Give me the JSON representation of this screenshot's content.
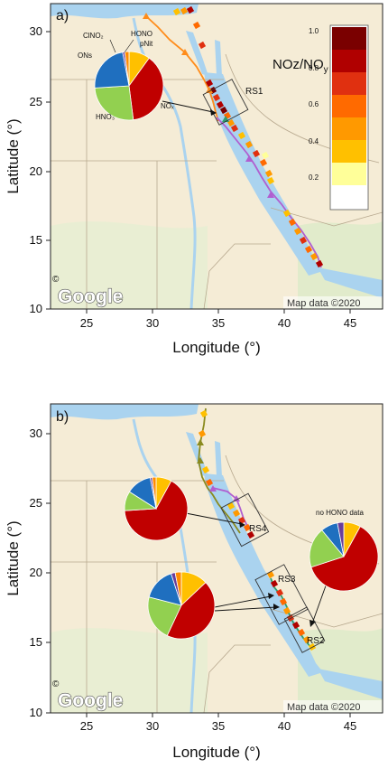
{
  "panels": [
    {
      "letter": "a)",
      "xlabel": "Longitude (°)",
      "ylabel": "Latitude (°)",
      "x_ticks": [
        "25",
        "30",
        "35",
        "40",
        "45"
      ],
      "y_ticks": [
        "10",
        "15",
        "20",
        "25",
        "30"
      ],
      "google_logo": "Google",
      "copyright": "©",
      "map_credit": "Map data ©2020",
      "region_labels": [
        "RS1"
      ],
      "pie": {
        "slices": [
          {
            "name": "NOx",
            "value": 38,
            "color": "#c00000"
          },
          {
            "name": "HNO3",
            "value": 26,
            "color": "#92d050"
          },
          {
            "name": "ONs",
            "value": 23,
            "color": "#1f6fbf"
          },
          {
            "name": "ClNO2",
            "value": 1,
            "color": "#6a3d9a"
          },
          {
            "name": "HONO",
            "value": 2,
            "color": "#ff8c00"
          },
          {
            "name": "pNit",
            "value": 10,
            "color": "#ffc000"
          }
        ],
        "labels": {
          "clno2": "ClNO₂",
          "hono": "HONO",
          "pnit": "pNit",
          "ons": "ONs",
          "nox": "NOₓ",
          "hno3": "HNO₃"
        }
      },
      "colorbar": {
        "title_main": "NOz/NO",
        "title_sub": "y",
        "ticks": [
          "0.2",
          "0.4",
          "0.6",
          "0.8",
          "1.0"
        ],
        "colors": [
          "#ffffff",
          "#ffff99",
          "#ffc000",
          "#ff9900",
          "#ff6a00",
          "#e03010",
          "#b00000",
          "#7a0000"
        ]
      }
    },
    {
      "letter": "b)",
      "xlabel": "Longitude (°)",
      "ylabel": "Latitude (°)",
      "x_ticks": [
        "25",
        "30",
        "35",
        "40",
        "45"
      ],
      "y_ticks": [
        "10",
        "15",
        "20",
        "25",
        "30"
      ],
      "google_logo": "Google",
      "copyright": "©",
      "map_credit": "Map data ©2020",
      "region_labels": [
        "RS4",
        "RS3",
        "RS2"
      ],
      "no_hono_label": "no HONO data",
      "pies": [
        {
          "name": "RS4",
          "slices": [
            {
              "name": "NOx",
              "value": 66,
              "color": "#c00000"
            },
            {
              "name": "HNO3",
              "value": 10,
              "color": "#92d050"
            },
            {
              "name": "ONs",
              "value": 13,
              "color": "#1f6fbf"
            },
            {
              "name": "ClNO2",
              "value": 1,
              "color": "#6a3d9a"
            },
            {
              "name": "HONO",
              "value": 2,
              "color": "#ff8c00"
            },
            {
              "name": "pNit",
              "value": 8,
              "color": "#ffc000"
            }
          ]
        },
        {
          "name": "RS3",
          "slices": [
            {
              "name": "NOx",
              "value": 44,
              "color": "#c00000"
            },
            {
              "name": "HNO3",
              "value": 22,
              "color": "#92d050"
            },
            {
              "name": "ONs",
              "value": 16,
              "color": "#1f6fbf"
            },
            {
              "name": "ClNO2",
              "value": 2,
              "color": "#6a3d9a"
            },
            {
              "name": "HONO",
              "value": 3,
              "color": "#ff8c00"
            },
            {
              "name": "pNit",
              "value": 13,
              "color": "#ffc000"
            }
          ]
        },
        {
          "name": "RS2",
          "slices": [
            {
              "name": "NOx",
              "value": 62,
              "color": "#c00000"
            },
            {
              "name": "HNO3",
              "value": 19,
              "color": "#92d050"
            },
            {
              "name": "ONs",
              "value": 8,
              "color": "#1f6fbf"
            },
            {
              "name": "ClNO2",
              "value": 3,
              "color": "#6a3d9a"
            },
            {
              "name": "pNit",
              "value": 8,
              "color": "#ffc000"
            }
          ]
        }
      ]
    }
  ],
  "colors": {
    "land": "#f5ecd6",
    "land_green": "#dcebc8",
    "sea": "#aad3ef",
    "border": "#b8a98f",
    "track_a": "#ff8c1a",
    "track_b_purple": "#b05fd0",
    "track_b_olive": "#8a8a1e",
    "track_b_green": "#2e9e6e"
  }
}
